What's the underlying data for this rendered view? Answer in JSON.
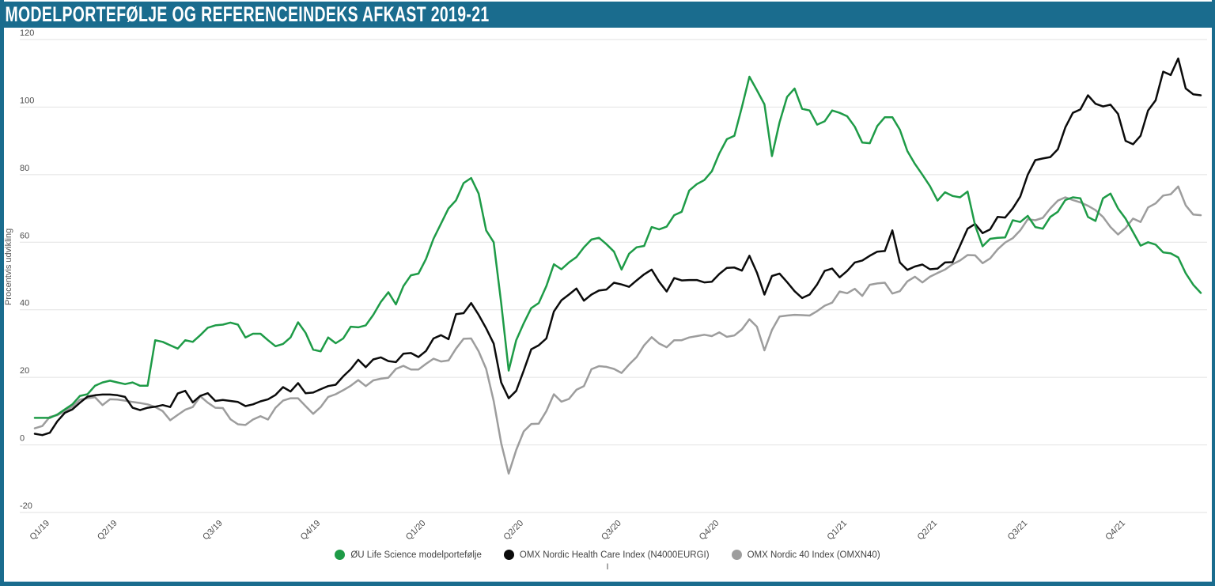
{
  "frame": {
    "accent_color": "#1a6c8e"
  },
  "footer": {
    "mark": "I"
  },
  "chart_data": {
    "type": "line",
    "title": "MODELPORTEFØLJE OG REFERENCEINDEKS AFKAST 2019-21",
    "ylabel": "Procentvis udvikling",
    "ylim": [
      -20,
      120
    ],
    "yticks": [
      120,
      100,
      80,
      60,
      40,
      20,
      0,
      -20
    ],
    "grid": "horizontal-only",
    "legend_position": "bottom-center",
    "x_resolution": "weekly",
    "xticks": [
      {
        "label": "Q1/19",
        "week": 2
      },
      {
        "label": "Q2/19",
        "week": 11
      },
      {
        "label": "Q3/19",
        "week": 25
      },
      {
        "label": "Q4/19",
        "week": 38
      },
      {
        "label": "Q1/20",
        "week": 52
      },
      {
        "label": "Q2/20",
        "week": 65
      },
      {
        "label": "Q3/20",
        "week": 78
      },
      {
        "label": "Q4/20",
        "week": 91
      },
      {
        "label": "Q1/21",
        "week": 108
      },
      {
        "label": "Q2/21",
        "week": 120
      },
      {
        "label": "Q3/21",
        "week": 132
      },
      {
        "label": "Q4/21",
        "week": 145
      }
    ],
    "series": [
      {
        "name": "ØU Life Science modelportefølje",
        "color": "#1e9b47",
        "values": [
          8,
          8,
          8,
          9,
          10.5,
          12,
          14.5,
          15,
          17.5,
          18.5,
          19,
          18.5,
          18,
          18.5,
          17.5,
          17.5,
          31,
          30.5,
          29.5,
          28.5,
          31,
          30.5,
          32.5,
          34.7,
          35.4,
          35.6,
          36.2,
          35.6,
          31.8,
          32.9,
          32.9,
          31,
          29.2,
          29.9,
          31.8,
          36.3,
          33.2,
          28.2,
          27.7,
          31.8,
          30.1,
          31.5,
          35,
          34.8,
          35.4,
          38.5,
          42.3,
          45.2,
          41.6,
          47,
          50.2,
          50.7,
          55,
          61,
          65.5,
          70,
          72.4,
          77.5,
          79,
          74.4,
          63.5,
          60,
          42,
          22,
          31,
          36,
          40.5,
          42,
          47,
          53.5,
          52,
          54,
          55.6,
          58.5,
          60.8,
          61.3,
          59.4,
          57.2,
          51.9,
          56.6,
          58.5,
          58.9,
          64.5,
          63.8,
          64.6,
          68,
          69,
          75.3,
          77.2,
          78.4,
          81,
          86.3,
          90.5,
          91.5,
          100,
          109,
          105,
          100.8,
          85.5,
          95.5,
          103,
          105.5,
          99.5,
          99,
          94.8,
          95.8,
          99,
          98.3,
          97.3,
          94.2,
          89.5,
          89.3,
          94.4,
          97,
          97,
          93.3,
          87,
          83.2,
          80,
          76.6,
          72.3,
          74.8,
          73.7,
          73.3,
          75,
          65,
          58.8,
          61,
          61.3,
          61.4,
          66.5,
          66,
          67.8,
          64.5,
          64,
          67.5,
          69,
          72.5,
          73.3,
          73,
          67.5,
          66.3,
          73,
          74.4,
          70,
          67,
          63,
          59,
          60,
          59.3,
          57,
          56.7,
          55.5,
          50.8,
          47.4,
          45
        ]
      },
      {
        "name": "OMX Nordic Health Care Index (N4000EURGI)",
        "color": "#0b0b0b",
        "values": [
          3.3,
          2.9,
          3.6,
          7,
          9.5,
          10.5,
          12.5,
          14.3,
          14.7,
          14.9,
          14.9,
          14.7,
          14.2,
          11,
          10.3,
          11,
          11.3,
          11.8,
          11.2,
          15.2,
          16,
          12.6,
          14.5,
          15.3,
          13,
          13.3,
          13,
          12.7,
          11.5,
          12,
          12.9,
          13.5,
          14.8,
          17.1,
          15.8,
          18.3,
          15.3,
          15.5,
          16.5,
          17.4,
          17.8,
          20.3,
          22.4,
          25.2,
          23,
          25.3,
          25.9,
          24.8,
          24.5,
          27,
          27.2,
          26,
          27.8,
          31.5,
          32.5,
          31.3,
          38.7,
          39,
          42,
          38.5,
          34.5,
          30,
          18.5,
          13.8,
          16,
          22,
          28.3,
          29.5,
          31.5,
          39.5,
          42.8,
          44.5,
          46.3,
          42.7,
          44.5,
          45.7,
          46,
          48,
          47.5,
          46.8,
          48.7,
          50.5,
          51.9,
          48.3,
          45.4,
          49.4,
          48.7,
          48.8,
          48.8,
          48.1,
          48.3,
          50.6,
          52.4,
          52.5,
          51.6,
          56,
          51,
          44.5,
          50,
          50.7,
          48.2,
          45.5,
          43.5,
          44.5,
          47.5,
          51.5,
          52.2,
          49.6,
          51.5,
          54,
          54.6,
          56,
          57.2,
          57.4,
          63.5,
          54,
          51.8,
          52.8,
          53.4,
          52,
          52.2,
          54,
          54.1,
          59,
          64,
          65.4,
          62.7,
          63.8,
          67.5,
          67.3,
          70,
          73.5,
          80,
          84.3,
          84.8,
          85.2,
          87.5,
          94,
          98.3,
          99.3,
          103.5,
          101,
          100.2,
          100.7,
          98,
          90,
          89,
          91.5,
          99,
          102,
          110.5,
          109.5,
          114.4,
          105.5,
          103.8,
          103.5
        ]
      },
      {
        "name": "OMX Nordic 40 Index (OMXN40)",
        "color": "#9d9d9d",
        "values": [
          4.9,
          5.6,
          8.3,
          8.8,
          10,
          11.3,
          13.4,
          13.8,
          14.1,
          11.8,
          13.5,
          13.4,
          13.1,
          12.7,
          12.4,
          12,
          11.2,
          10,
          7.3,
          8.9,
          10.4,
          11.2,
          14.4,
          12.5,
          11,
          10.9,
          7.6,
          6.1,
          5.9,
          7.5,
          8.5,
          7.5,
          11,
          13.1,
          13.8,
          13.8,
          11.5,
          9.2,
          11.2,
          14.2,
          15,
          16.2,
          17.5,
          19.2,
          17.4,
          19.1,
          19.6,
          19.9,
          22.5,
          23.4,
          22.3,
          22.3,
          24,
          25.5,
          24.7,
          25,
          28.5,
          31.4,
          31.5,
          27.7,
          22.5,
          13,
          0.5,
          -8.5,
          -1.5,
          4,
          6.2,
          6.3,
          10,
          15,
          12.8,
          13.6,
          16.3,
          17.4,
          22.4,
          23.3,
          23.1,
          22.5,
          21.3,
          23.8,
          26,
          29.5,
          31.9,
          30,
          28.9,
          31,
          31,
          31.8,
          32.2,
          32.6,
          32.2,
          33.3,
          32,
          32.4,
          34.2,
          37.2,
          35,
          28,
          34,
          38,
          38.3,
          38.5,
          38.4,
          38.3,
          39.6,
          41.2,
          42.1,
          45.4,
          44.9,
          46.2,
          44.1,
          47.4,
          47.8,
          48,
          44.8,
          45.5,
          48.4,
          49.8,
          48.1,
          49.8,
          50.9,
          51.9,
          53.5,
          54.6,
          56.2,
          56.1,
          53.8,
          55.2,
          57.9,
          59.9,
          61.2,
          63.5,
          66.8,
          66.5,
          67.2,
          70,
          72.3,
          73.3,
          72.5,
          71.8,
          70.8,
          69.5,
          67.5,
          64.5,
          62.3,
          64.2,
          67,
          66,
          70.3,
          71.5,
          73.8,
          74.2,
          76.5,
          70.9,
          68.2,
          68
        ]
      }
    ]
  }
}
